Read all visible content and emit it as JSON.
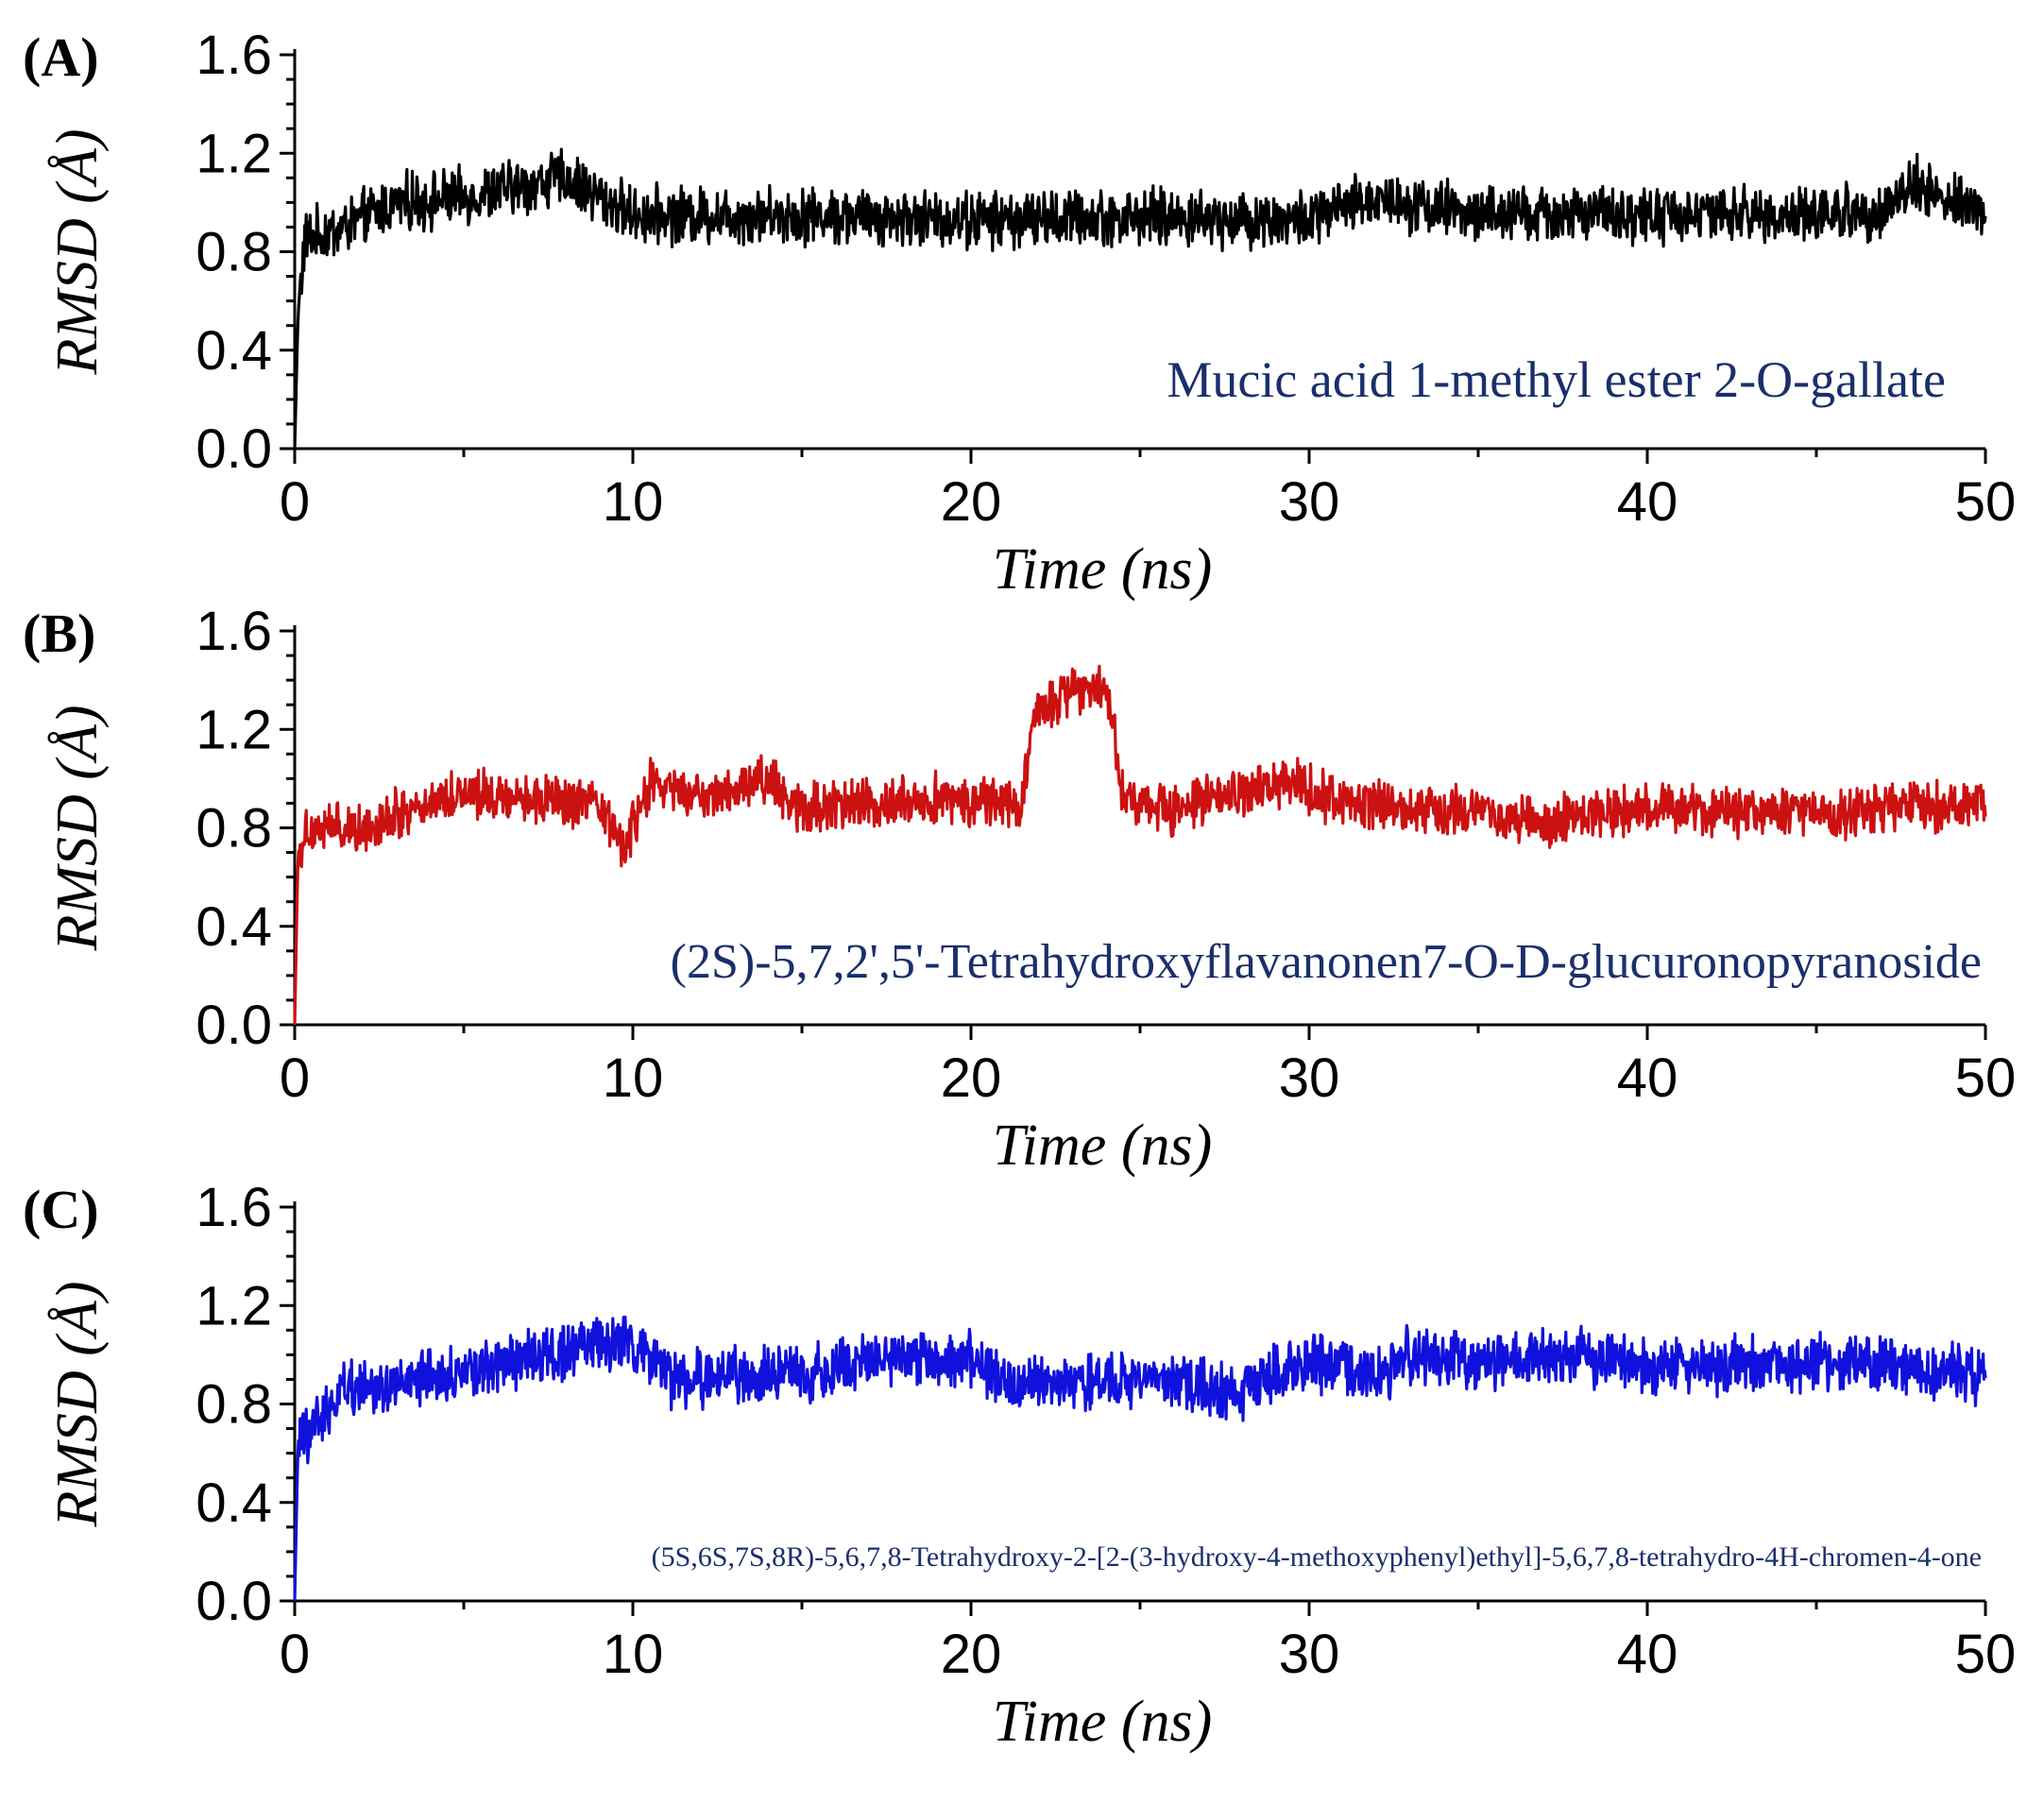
{
  "chart_data": [
    {
      "type": "line",
      "panel_label": "(A)",
      "series_name": "Mucic acid 1-methyl ester 2-O-gallate",
      "color": "#000000",
      "xlabel": "Time (ns)",
      "ylabel": "RMSD (Å)",
      "xlim": [
        0,
        50
      ],
      "ylim": [
        0,
        1.6
      ],
      "x_ticks": [
        0,
        10,
        20,
        30,
        40,
        50
      ],
      "y_ticks": [
        0.0,
        0.4,
        0.8,
        1.2,
        1.6
      ],
      "x_tick_labels": [
        "0",
        "10",
        "20",
        "30",
        "40",
        "50"
      ],
      "y_tick_labels": [
        "0.0",
        "0.4",
        "0.8",
        "1.2",
        "1.6"
      ],
      "profile": [
        [
          0,
          0.0
        ],
        [
          0.1,
          0.55
        ],
        [
          0.3,
          0.85
        ],
        [
          1.5,
          0.9
        ],
        [
          3,
          1.0
        ],
        [
          5,
          1.02
        ],
        [
          8,
          1.1
        ],
        [
          10,
          0.95
        ],
        [
          13,
          0.95
        ],
        [
          15,
          0.95
        ],
        [
          20,
          0.93
        ],
        [
          25,
          0.94
        ],
        [
          30,
          0.93
        ],
        [
          32,
          1.02
        ],
        [
          35,
          0.95
        ],
        [
          40,
          0.95
        ],
        [
          45,
          0.95
        ],
        [
          47,
          0.97
        ],
        [
          48,
          1.08
        ],
        [
          49,
          1.0
        ],
        [
          50,
          0.96
        ]
      ],
      "noise": 0.09
    },
    {
      "type": "line",
      "panel_label": "(B)",
      "series_name": "(2S)-5,7,2',5'-Tetrahydroxyflavanonen7-O-D-glucuronopyranoside",
      "color": "#cc1111",
      "xlabel": "Time (ns)",
      "ylabel": "RMSD (Å)",
      "xlim": [
        0,
        50
      ],
      "ylim": [
        0,
        1.6
      ],
      "x_ticks": [
        0,
        10,
        20,
        30,
        40,
        50
      ],
      "y_ticks": [
        0.0,
        0.4,
        0.8,
        1.2,
        1.6
      ],
      "x_tick_labels": [
        "0",
        "10",
        "20",
        "30",
        "40",
        "50"
      ],
      "y_tick_labels": [
        "0.0",
        "0.4",
        "0.8",
        "1.2",
        "1.6"
      ],
      "profile": [
        [
          0,
          0.0
        ],
        [
          0.1,
          0.7
        ],
        [
          0.4,
          0.8
        ],
        [
          2,
          0.8
        ],
        [
          3.5,
          0.88
        ],
        [
          5,
          0.95
        ],
        [
          7,
          0.92
        ],
        [
          9,
          0.88
        ],
        [
          9.8,
          0.72
        ],
        [
          10.5,
          0.98
        ],
        [
          12,
          0.92
        ],
        [
          14,
          1.0
        ],
        [
          15,
          0.88
        ],
        [
          19,
          0.92
        ],
        [
          21.5,
          0.9
        ],
        [
          22,
          1.3
        ],
        [
          24,
          1.4
        ],
        [
          24.5,
          0.92
        ],
        [
          26,
          0.88
        ],
        [
          29.5,
          0.98
        ],
        [
          31,
          0.9
        ],
        [
          35,
          0.87
        ],
        [
          37,
          0.82
        ],
        [
          40,
          0.88
        ],
        [
          45,
          0.86
        ],
        [
          50,
          0.9
        ]
      ],
      "noise": 0.08
    },
    {
      "type": "line",
      "panel_label": "(C)",
      "series_name": "(5S,6S,7S,8R)-5,6,7,8-Tetrahydroxy-2-[2-(3-hydroxy-4-methoxyphenyl)ethyl]-5,6,7,8-tetrahydro-4H-chromen-4-one",
      "color": "#1111dd",
      "xlabel": "Time (ns)",
      "ylabel": "RMSD (Å)",
      "xlim": [
        0,
        50
      ],
      "ylim": [
        0,
        1.6
      ],
      "x_ticks": [
        0,
        10,
        20,
        30,
        40,
        50
      ],
      "y_ticks": [
        0.0,
        0.4,
        0.8,
        1.2,
        1.6
      ],
      "x_tick_labels": [
        "0",
        "10",
        "20",
        "30",
        "40",
        "50"
      ],
      "y_tick_labels": [
        "0.0",
        "0.4",
        "0.8",
        "1.2",
        "1.6"
      ],
      "profile": [
        [
          0,
          0.0
        ],
        [
          0.1,
          0.65
        ],
        [
          0.6,
          0.7
        ],
        [
          1.5,
          0.88
        ],
        [
          3,
          0.87
        ],
        [
          5,
          0.93
        ],
        [
          8,
          1.02
        ],
        [
          10,
          1.05
        ],
        [
          11,
          0.9
        ],
        [
          15,
          0.92
        ],
        [
          18,
          1.0
        ],
        [
          20,
          0.98
        ],
        [
          21,
          0.88
        ],
        [
          25,
          0.9
        ],
        [
          28,
          0.85
        ],
        [
          30,
          0.98
        ],
        [
          32,
          0.92
        ],
        [
          33,
          1.0
        ],
        [
          35,
          0.97
        ],
        [
          38,
          1.0
        ],
        [
          40,
          0.95
        ],
        [
          45,
          0.97
        ],
        [
          50,
          0.92
        ]
      ],
      "noise": 0.09
    }
  ]
}
